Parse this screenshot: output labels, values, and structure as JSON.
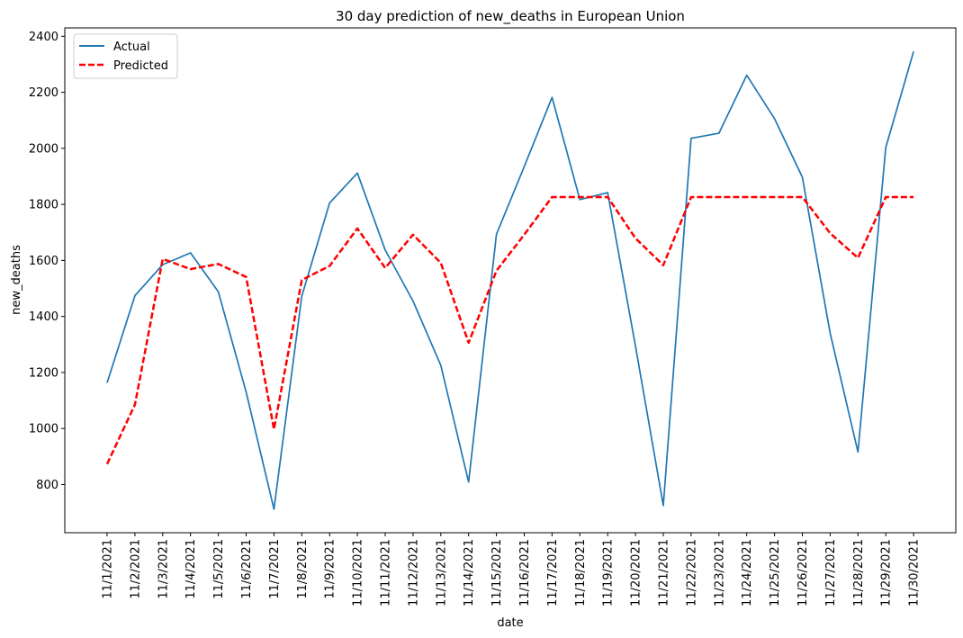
{
  "chart_data": {
    "type": "line",
    "title": "30 day prediction of new_deaths in European Union",
    "xlabel": "date",
    "ylabel": "new_deaths",
    "ylim": [
      628,
      2430
    ],
    "yticks": [
      800,
      1000,
      1200,
      1400,
      1600,
      1800,
      2000,
      2200,
      2400
    ],
    "grid": false,
    "legend_position": "top-left",
    "categories": [
      "11/1/2021",
      "11/2/2021",
      "11/3/2021",
      "11/4/2021",
      "11/5/2021",
      "11/6/2021",
      "11/7/2021",
      "11/8/2021",
      "11/9/2021",
      "11/10/2021",
      "11/11/2021",
      "11/12/2021",
      "11/13/2021",
      "11/14/2021",
      "11/15/2021",
      "11/16/2021",
      "11/17/2021",
      "11/18/2021",
      "11/19/2021",
      "11/20/2021",
      "11/21/2021",
      "11/22/2021",
      "11/23/2021",
      "11/24/2021",
      "11/25/2021",
      "11/26/2021",
      "11/27/2021",
      "11/28/2021",
      "11/29/2021",
      "11/30/2021"
    ],
    "series": [
      {
        "name": "Actual",
        "color": "#1f77b4",
        "style": "solid",
        "values": [
          1163,
          1474,
          1585,
          1627,
          1488,
          1130,
          712,
          1472,
          1805,
          1912,
          1637,
          1455,
          1225,
          809,
          1693,
          1935,
          2182,
          1817,
          1842,
          1294,
          725,
          2036,
          2054,
          2261,
          2106,
          1897,
          1340,
          916,
          2003,
          2346
        ]
      },
      {
        "name": "Predicted",
        "color": "#ff0000",
        "style": "dashed",
        "values": [
          873,
          1085,
          1605,
          1569,
          1587,
          1541,
          997,
          1530,
          1580,
          1714,
          1573,
          1692,
          1591,
          1306,
          1563,
          1692,
          1826,
          1826,
          1826,
          1679,
          1583,
          1826,
          1826,
          1826,
          1826,
          1826,
          1697,
          1609,
          1826,
          1826
        ]
      }
    ]
  }
}
